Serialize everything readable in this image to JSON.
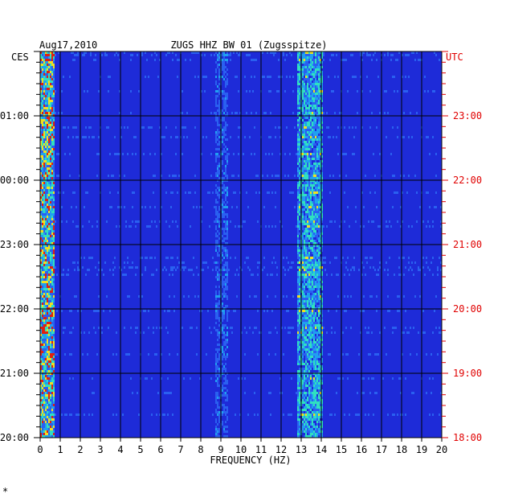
{
  "chart_data": {
    "type": "heatmap",
    "header_date": "Aug17,2010",
    "title": "ZUGS HHZ BW 01 (Zugsspitze)",
    "left_axis_unit": "CES",
    "right_axis_unit": "UTC",
    "xlabel": "FREQUENCY (HZ)",
    "xlim": [
      0,
      20
    ],
    "x_ticks": [
      "0",
      "1",
      "2",
      "3",
      "4",
      "5",
      "6",
      "7",
      "8",
      "9",
      "10",
      "11",
      "12",
      "13",
      "14",
      "15",
      "16",
      "17",
      "18",
      "19",
      "20"
    ],
    "y_ticks_left": [
      "20:00",
      "21:00",
      "22:00",
      "23:00",
      "00:00",
      "01:00"
    ],
    "y_ticks_right": [
      "18:00",
      "19:00",
      "20:00",
      "21:00",
      "22:00",
      "23:00"
    ],
    "y_hours_span": 6,
    "colors": {
      "background_plot": "#1e2bd8",
      "left_text": "#000000",
      "right_text": "#e00000",
      "grid": "#000000"
    },
    "energy_bands": [
      {
        "from_hz": 0.0,
        "to_hz": 0.7,
        "intensity": 0.95
      },
      {
        "from_hz": 8.7,
        "to_hz": 9.3,
        "intensity": 0.45
      },
      {
        "from_hz": 12.8,
        "to_hz": 14.0,
        "intensity": 0.75
      }
    ],
    "grid": true
  },
  "corner_mark": "*"
}
